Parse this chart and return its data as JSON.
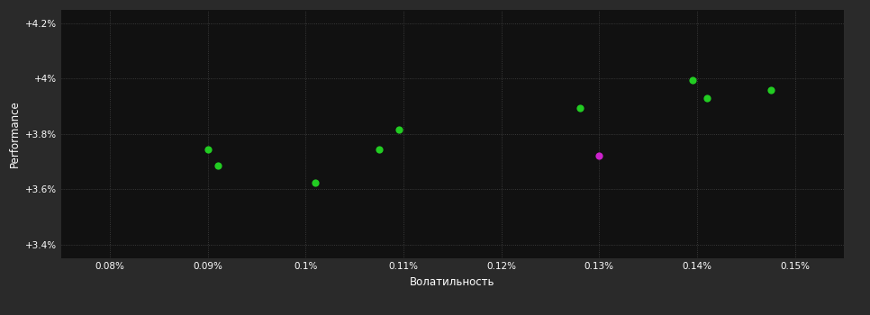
{
  "background_color": "#2a2a2a",
  "plot_bg_color": "#111111",
  "grid_color": "#444444",
  "text_color": "#ffffff",
  "xlabel": "Волатильность",
  "ylabel": "Performance",
  "xlim": [
    0.075,
    0.155
  ],
  "ylim": [
    0.0335,
    0.0425
  ],
  "yticks": [
    0.034,
    0.036,
    0.038,
    0.04,
    0.042
  ],
  "ytick_labels": [
    "+3.4%",
    "+3.6%",
    "+3.8%",
    "+4%",
    "+4.2%"
  ],
  "xticks": [
    0.08,
    0.09,
    0.1,
    0.11,
    0.12,
    0.13,
    0.14,
    0.15
  ],
  "xtick_labels": [
    "0.08%",
    "0.09%",
    "0.1%",
    "0.11%",
    "0.12%",
    "0.13%",
    "0.14%",
    "0.15%"
  ],
  "points_green": [
    [
      0.09,
      0.03745
    ],
    [
      0.091,
      0.03685
    ],
    [
      0.101,
      0.03625
    ],
    [
      0.1075,
      0.03745
    ],
    [
      0.1095,
      0.03815
    ],
    [
      0.128,
      0.03895
    ],
    [
      0.1395,
      0.03995
    ],
    [
      0.141,
      0.0393
    ],
    [
      0.1475,
      0.0396
    ]
  ],
  "points_magenta": [
    [
      0.13,
      0.0372
    ]
  ],
  "green_color": "#22cc22",
  "magenta_color": "#cc22cc",
  "marker_size": 35
}
